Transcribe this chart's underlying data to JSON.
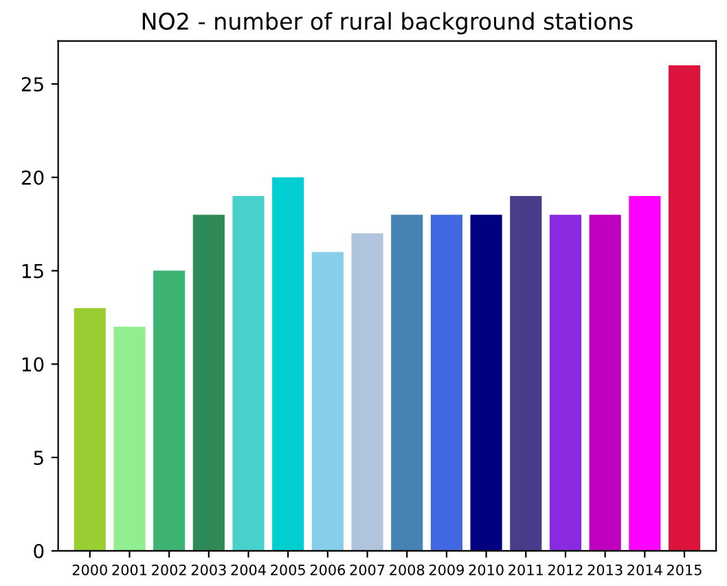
{
  "chart_data": {
    "type": "bar",
    "title": "NO2 - number of rural background stations",
    "categories": [
      "2000",
      "2001",
      "2002",
      "2003",
      "2004",
      "2005",
      "2006",
      "2007",
      "2008",
      "2009",
      "2010",
      "2011",
      "2012",
      "2013",
      "2014",
      "2015"
    ],
    "values": [
      13,
      12,
      15,
      18,
      19,
      20,
      16,
      17,
      18,
      18,
      18,
      19,
      18,
      18,
      19,
      26
    ],
    "colors": [
      "#9acd32",
      "#90ee90",
      "#3cb371",
      "#2e8b57",
      "#48d1cc",
      "#00ced1",
      "#87ceeb",
      "#b0c4de",
      "#4682b4",
      "#4169e1",
      "#000080",
      "#483d8b",
      "#8a2be2",
      "#c000c0",
      "#ff00ff",
      "#dc143c"
    ],
    "ylim": [
      0,
      27.3
    ],
    "yticks": [
      0,
      5,
      10,
      15,
      20,
      25
    ],
    "grid": false
  }
}
